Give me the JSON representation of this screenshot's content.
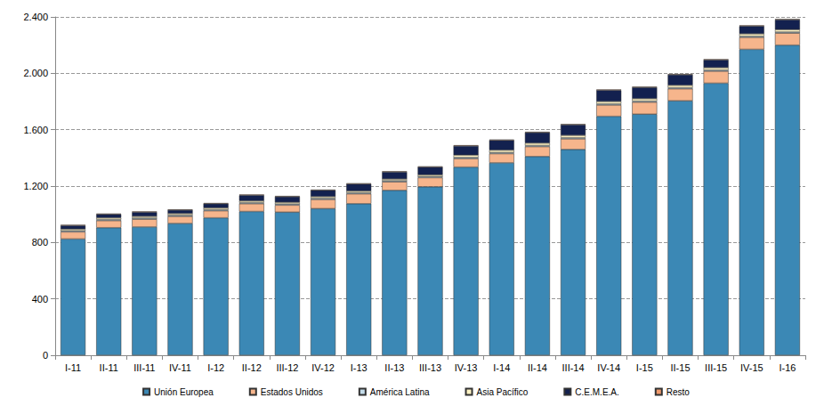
{
  "chart_data": {
    "type": "bar",
    "stacked": true,
    "grid": true,
    "legend": "bottom",
    "categories": [
      "I-11",
      "II-11",
      "III-11",
      "IV-11",
      "I-12",
      "II-12",
      "III-12",
      "IV-12",
      "I-13",
      "II-13",
      "III-13",
      "IV-13",
      "I-14",
      "II-14",
      "III-14",
      "IV-14",
      "I-15",
      "II-15",
      "III-15",
      "IV-15",
      "I-16"
    ],
    "ylim": [
      0,
      2400
    ],
    "yticks": [
      0,
      400,
      800,
      {
        "value": 1200,
        "label": "1.200"
      },
      {
        "value": 1600,
        "label": "1.600"
      },
      {
        "value": 2000,
        "label": "2.000"
      },
      {
        "value": 2400,
        "label": "2.400"
      }
    ],
    "series": [
      {
        "name": "Unión Europea",
        "color": "#3b88b5",
        "values": [
          825,
          905,
          910,
          935,
          975,
          1020,
          1015,
          1040,
          1075,
          1170,
          1195,
          1335,
          1365,
          1410,
          1460,
          1695,
          1710,
          1805,
          1930,
          2170,
          2200
        ]
      },
      {
        "name": "Estados Unidos",
        "color": "#f6b58c",
        "values": [
          50,
          50,
          55,
          50,
          50,
          55,
          50,
          65,
          70,
          60,
          65,
          60,
          65,
          70,
          75,
          80,
          85,
          85,
          85,
          85,
          85
        ]
      },
      {
        "name": "América Latina",
        "color": "#c4dcea",
        "values": [
          8,
          8,
          8,
          8,
          8,
          8,
          8,
          8,
          8,
          8,
          8,
          8,
          8,
          8,
          8,
          8,
          8,
          8,
          8,
          8,
          8
        ]
      },
      {
        "name": "Asia Pacífico",
        "color": "#fff3c4",
        "values": [
          12,
          12,
          12,
          12,
          12,
          12,
          12,
          12,
          12,
          12,
          12,
          17,
          17,
          17,
          17,
          17,
          17,
          17,
          17,
          17,
          17
        ]
      },
      {
        "name": "C.E.M.E.A.",
        "color": "#13214f",
        "values": [
          25,
          25,
          30,
          25,
          30,
          40,
          40,
          45,
          50,
          50,
          55,
          65,
          70,
          75,
          75,
          80,
          80,
          75,
          55,
          55,
          70
        ]
      },
      {
        "name": "Resto",
        "color": "#f19a6c",
        "values": [
          5,
          5,
          5,
          5,
          5,
          5,
          5,
          5,
          5,
          5,
          5,
          5,
          5,
          5,
          5,
          5,
          5,
          5,
          5,
          5,
          5
        ]
      }
    ]
  }
}
